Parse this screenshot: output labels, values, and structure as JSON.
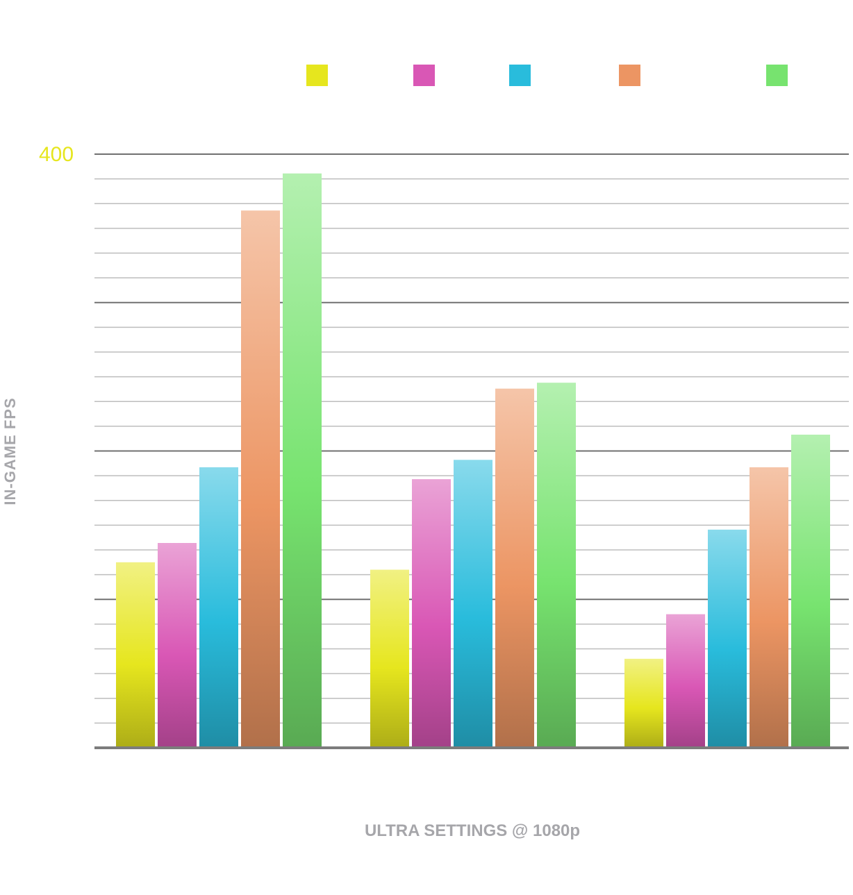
{
  "chart_data": {
    "type": "bar",
    "title": "",
    "xlabel": "ULTRA SETTINGS @ 1080p",
    "ylabel": "IN-GAME FPS",
    "ylim": [
      0,
      400
    ],
    "y_tick_labels": [
      "400"
    ],
    "grid": true,
    "legend_position": "top",
    "categories": [
      "",
      "",
      ""
    ],
    "series": [
      {
        "color": "#e6e61e",
        "values": [
          125,
          120,
          60
        ]
      },
      {
        "color": "#d957b5",
        "values": [
          138,
          181,
          90
        ]
      },
      {
        "color": "#29bcdc",
        "values": [
          189,
          194,
          147
        ]
      },
      {
        "color": "#ec9563",
        "values": [
          362,
          242,
          189
        ]
      },
      {
        "color": "#77e36f",
        "values": [
          387,
          246,
          211
        ]
      }
    ]
  },
  "colors": {
    "y_tick_label": "#e6e61e",
    "axis_title": "#a6a6aa",
    "gridline_minor": "#bdbdbd",
    "gridline_major": "#707070",
    "baseline": "#7c7c7c"
  }
}
